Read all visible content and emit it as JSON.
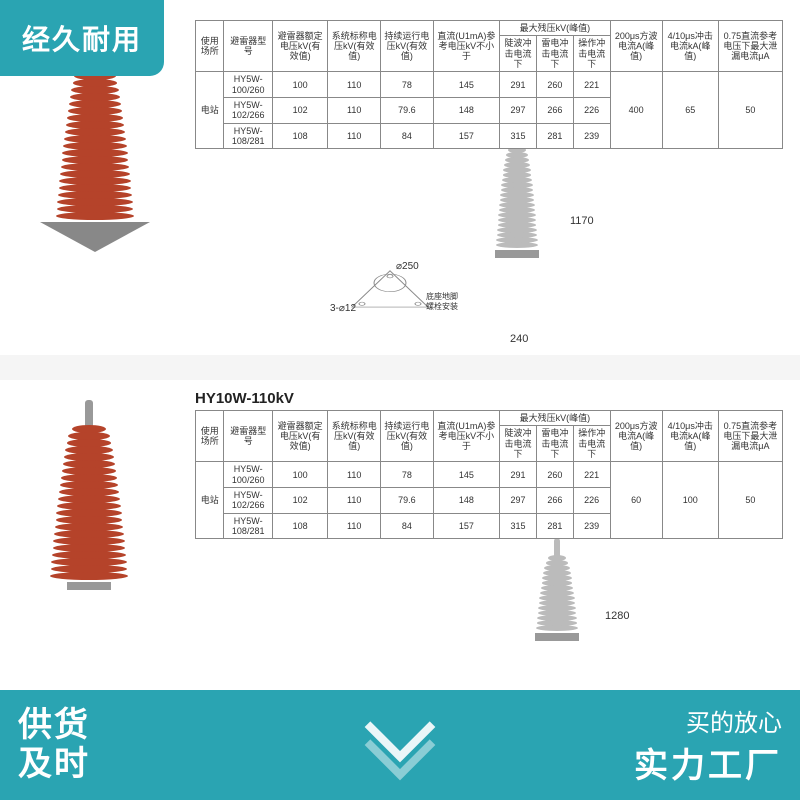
{
  "badges": {
    "top_left": "经久耐用",
    "bottom_left_l1": "供货",
    "bottom_left_l2": "及时",
    "bottom_right_l1": "买的放心",
    "bottom_right_l2": "实力工厂"
  },
  "colors": {
    "accent": "#2aa4b2",
    "arrester": "#b5432a",
    "drawing": "#bbbbbb",
    "table_border": "#888888",
    "bg": "#f5f5f5"
  },
  "section2_title": "HY10W-110kV",
  "dims": {
    "top_height": "1170",
    "top_base_w": "240",
    "top_base_d": "250",
    "top_bolt": "3-⌀12",
    "top_base_note": "底座地脚螺栓安装",
    "bot_height": "1280"
  },
  "table_top": {
    "headers": [
      "使用场所",
      "避雷器型号",
      "避雷器额定电压kV(有效值)",
      "系统标称电压kV(有效值)",
      "持续运行电压kV(有效值)",
      "直流(U1mA)参考电压kV不小于",
      "最大残压kV(峰值)",
      "200μs方波电流A(峰值)",
      "4/10μs冲击电流kA(峰值)",
      "0.75直流参考电压下最大泄漏电流μA"
    ],
    "subheaders": [
      "陡波冲击电流下",
      "雷电冲击电流下",
      "操作冲击电流下"
    ],
    "place": "电站",
    "rows": [
      [
        "HY5W-100/260",
        "100",
        "110",
        "78",
        "145",
        "291",
        "260",
        "221"
      ],
      [
        "HY5W-102/266",
        "102",
        "110",
        "79.6",
        "148",
        "297",
        "266",
        "226"
      ],
      [
        "HY5W-108/281",
        "108",
        "110",
        "84",
        "157",
        "315",
        "281",
        "239"
      ]
    ],
    "tail": [
      "400",
      "65",
      "50"
    ]
  },
  "table_bot": {
    "headers": [
      "使用场所",
      "避雷器型号",
      "避雷器额定电压kV(有效值)",
      "系统标称电压kV(有效值)",
      "持续运行电压kV(有效值)",
      "直流(U1mA)参考电压kV不小于",
      "最大残压kV(峰值)",
      "200μs方波电流A(峰值)",
      "4/10μs冲击电流kA(峰值)",
      "0.75直流参考电压下最大泄漏电流μA"
    ],
    "subheaders": [
      "陡波冲击电流下",
      "雷电冲击电流下",
      "操作冲击电流下"
    ],
    "place": "电站",
    "rows": [
      [
        "HY5W-100/260",
        "100",
        "110",
        "78",
        "145",
        "291",
        "260",
        "221"
      ],
      [
        "HY5W-102/266",
        "102",
        "110",
        "79.6",
        "148",
        "297",
        "266",
        "226"
      ],
      [
        "HY5W-108/281",
        "108",
        "110",
        "84",
        "157",
        "315",
        "281",
        "239"
      ]
    ],
    "tail": [
      "60",
      "100",
      "50"
    ]
  },
  "arrester_style": {
    "big_shed_count": 22,
    "big_shed_min_w": 34,
    "big_shed_max_w": 78,
    "drawing_shed_count": 20,
    "drawing_shed_min_w": 18,
    "drawing_shed_max_w": 42
  }
}
